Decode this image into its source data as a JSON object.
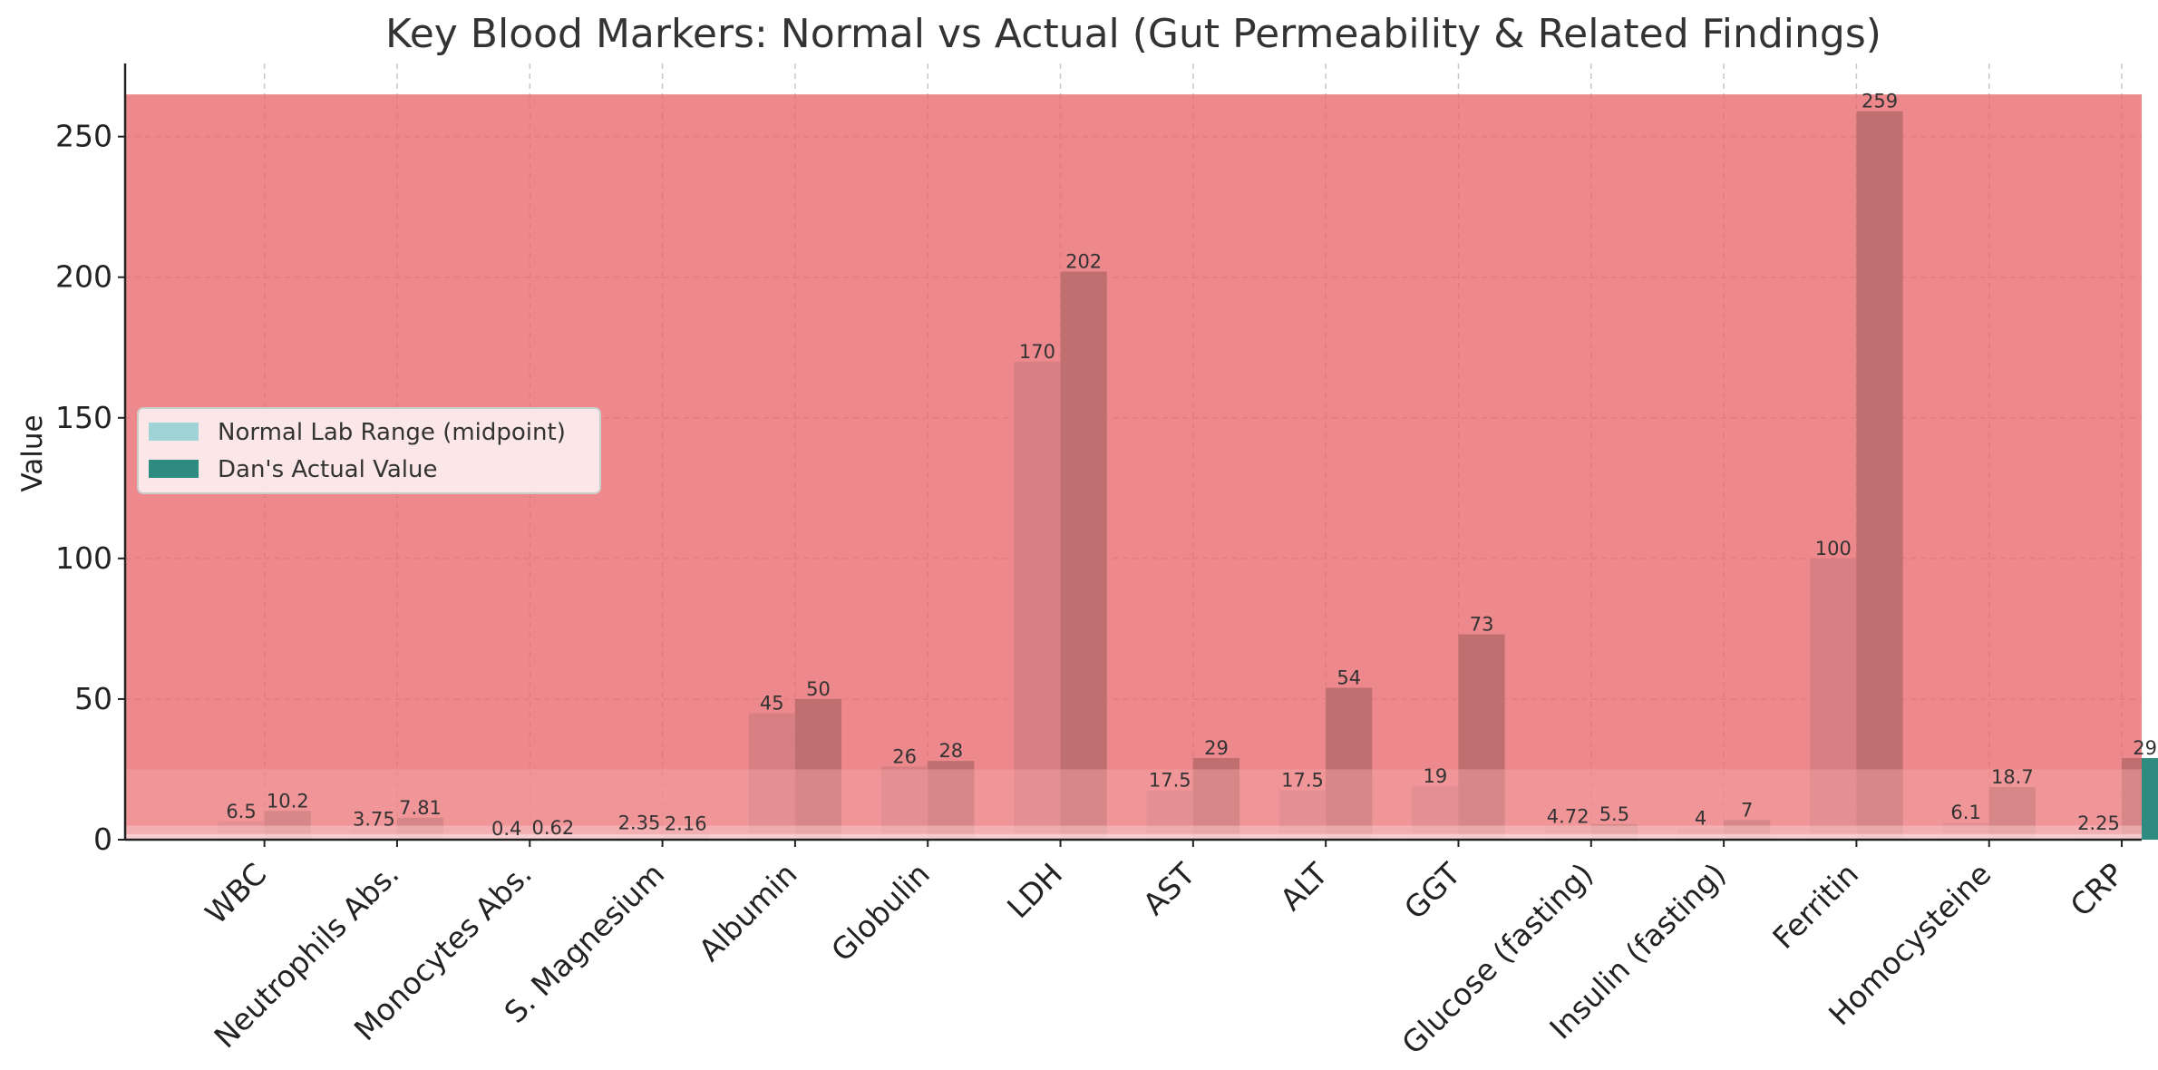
{
  "chart_data": {
    "type": "bar",
    "title": "Key Blood Markers: Normal vs Actual (Gut Permeability & Related Findings)",
    "xlabel": "",
    "ylabel": "Value",
    "ylim": [
      0,
      276
    ],
    "yticks": [
      0,
      50,
      100,
      150,
      200,
      250
    ],
    "grid": true,
    "legend_position": "center-left",
    "categories": [
      "WBC",
      "Neutrophils Abs.",
      "Monocytes Abs.",
      "S. Magnesium",
      "Albumin",
      "Globulin",
      "LDH",
      "AST",
      "ALT",
      "GGT",
      "Glucose (fasting)",
      "Insulin (fasting)",
      "Ferritin",
      "Homocysteine",
      "CRP"
    ],
    "series": [
      {
        "name": "Normal Lab Range (midpoint)",
        "color": "#9fd3d7",
        "values": [
          6.5,
          3.75,
          0.4,
          2.35,
          45,
          26,
          170,
          17.5,
          17.5,
          19,
          4.72,
          4,
          100,
          6.1,
          2.25
        ],
        "labels": [
          "6.5",
          "3.75",
          "0.4",
          "2.35",
          "45",
          "26",
          "170",
          "17.5",
          "17.5",
          "19",
          "4.72",
          "4",
          "100",
          "6.1",
          "2.25"
        ]
      },
      {
        "name": "Dan's Actual Value",
        "color": "#2e8b80",
        "values": [
          10.2,
          7.81,
          0.62,
          2.16,
          50,
          28,
          202,
          29,
          54,
          73,
          5.5,
          7,
          259,
          18.7,
          29
        ],
        "labels": [
          "10.2",
          "7.81",
          "0.62",
          "2.16",
          "50",
          "28",
          "202",
          "29",
          "54",
          "73",
          "5.5",
          "7",
          "259",
          "18.7",
          "29"
        ]
      }
    ],
    "overlay_bands": [
      {
        "from": 0,
        "to": 265,
        "color": "#e8686b",
        "opacity": 0.78
      },
      {
        "from": 0,
        "to": 25,
        "color": "#f4a3a6",
        "opacity": 0.45
      },
      {
        "from": 0,
        "to": 5,
        "color": "#f8c9cb",
        "opacity": 0.5
      },
      {
        "from": 0,
        "to": 2,
        "color": "#fde3e4",
        "opacity": 0.6
      }
    ]
  }
}
